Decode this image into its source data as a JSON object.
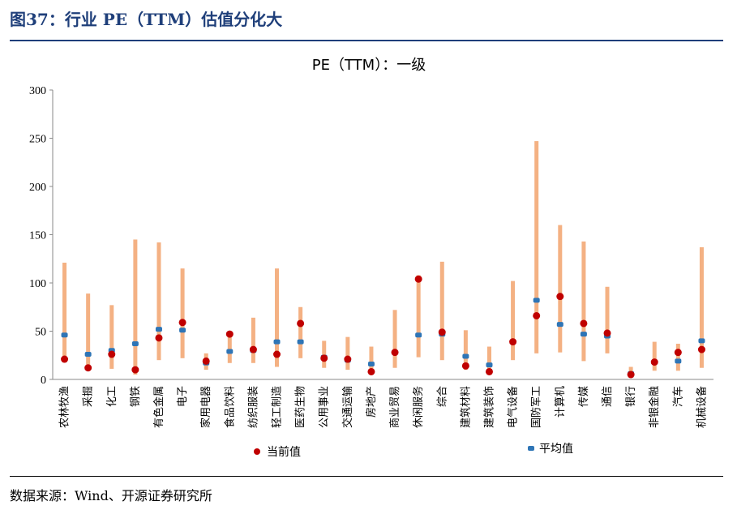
{
  "figure": {
    "label": "图37：行业 PE（TTM）估值分化大",
    "source": "数据来源：Wind、开源证券研究所"
  },
  "colors": {
    "range": "#f4b183",
    "current": "#c00000",
    "average": "#2e75b6"
  },
  "chart_data": {
    "type": "scatter",
    "title": "PE（TTM）：一级",
    "xlabel": "",
    "ylabel": "",
    "ylim": [
      0,
      300
    ],
    "yticks": [
      0,
      50,
      100,
      150,
      200,
      250,
      300
    ],
    "grid": false,
    "legend_position": "bottom",
    "categories": [
      "农林牧渔",
      "采掘",
      "化工",
      "钢铁",
      "有色金属",
      "电子",
      "家用电器",
      "食品饮料",
      "纺织服装",
      "轻工制造",
      "医药生物",
      "公用事业",
      "交通运输",
      "房地产",
      "商业贸易",
      "休闲服务",
      "综合",
      "建筑材料",
      "建筑装饰",
      "电气设备",
      "国防军工",
      "计算机",
      "传媒",
      "通信",
      "银行",
      "非银金融",
      "汽车",
      "机械设备"
    ],
    "range_min": [
      18,
      10,
      11,
      5,
      20,
      22,
      10,
      17,
      17,
      13,
      22,
      12,
      10,
      7,
      12,
      23,
      20,
      10,
      7,
      20,
      27,
      28,
      19,
      27,
      4,
      9,
      9,
      12
    ],
    "range_max": [
      121,
      89,
      77,
      145,
      142,
      115,
      27,
      47,
      64,
      115,
      75,
      40,
      44,
      34,
      72,
      108,
      122,
      51,
      34,
      102,
      247,
      160,
      143,
      96,
      13,
      39,
      37,
      137
    ],
    "series": [
      {
        "name": "当前值",
        "values": [
          21,
          12,
          26,
          10,
          43,
          59,
          19,
          47,
          31,
          26,
          58,
          22,
          21,
          8,
          28,
          104,
          49,
          14,
          8,
          39,
          66,
          86,
          58,
          48,
          5,
          18,
          28,
          31
        ]
      },
      {
        "name": "平均值",
        "values": [
          46,
          26,
          30,
          37,
          52,
          51,
          17,
          29,
          30,
          39,
          39,
          23,
          20,
          16,
          28,
          46,
          47,
          24,
          15,
          39,
          82,
          57,
          47,
          45,
          6,
          18,
          19,
          40
        ]
      }
    ]
  }
}
